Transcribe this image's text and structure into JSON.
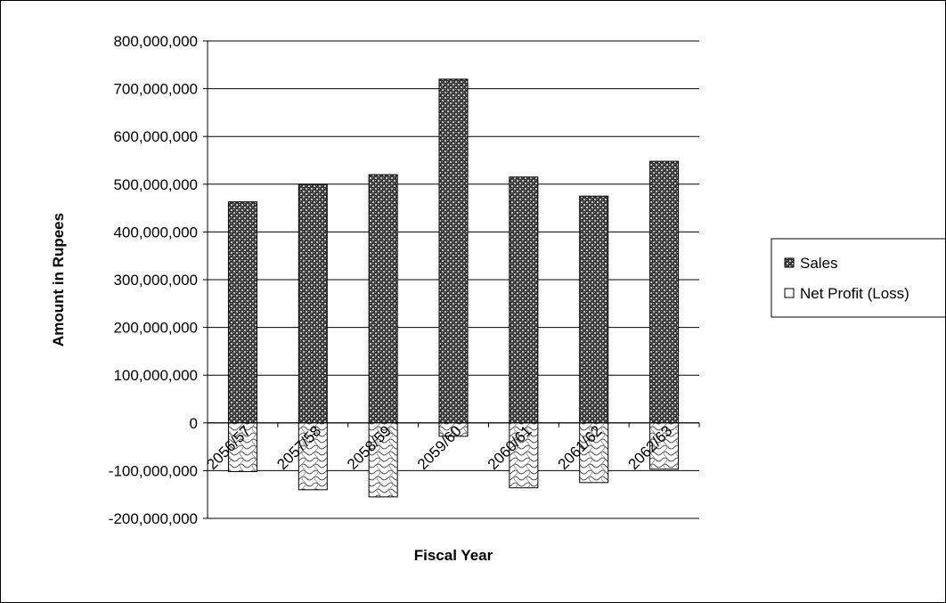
{
  "chart_data": {
    "type": "bar",
    "stacked": true,
    "categories": [
      "2056/57",
      "2057/58",
      "2058/59",
      "2059/60",
      "2060/61",
      "2061/62",
      "2062/63"
    ],
    "series": [
      {
        "name": "Sales",
        "values": [
          463000000,
          500000000,
          520000000,
          720000000,
          515000000,
          475000000,
          548000000
        ],
        "pattern": "dark-crosshatch",
        "color": "#3a3a3a"
      },
      {
        "name": "Net Profit (Loss)",
        "values": [
          -102000000,
          -140000000,
          -155000000,
          -28000000,
          -136000000,
          -125000000,
          -97000000
        ],
        "pattern": "light-wave",
        "color": "#ffffff"
      }
    ],
    "ylabel": "Amount in Rupees",
    "xlabel": "Fiscal Year",
    "ylim": [
      -200000000,
      800000000
    ],
    "yticks": [
      "800,000,000",
      "700,000,000",
      "600,000,000",
      "500,000,000",
      "400,000,000",
      "300,000,000",
      "200,000,000",
      "100,000,000",
      "0",
      "-100,000,000",
      "-200,000,000"
    ],
    "ytick_values": [
      800000000,
      700000000,
      600000000,
      500000000,
      400000000,
      300000000,
      200000000,
      100000000,
      0,
      -100000000,
      -200000000
    ],
    "grid": true,
    "legend_position": "right"
  }
}
